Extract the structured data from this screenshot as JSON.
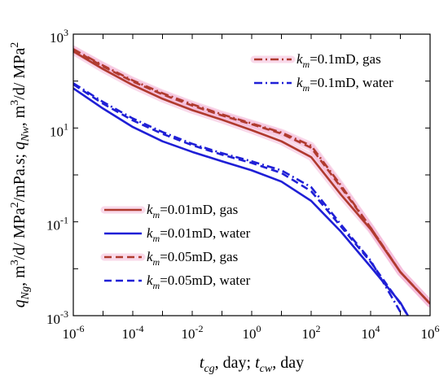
{
  "chart_data": {
    "type": "line",
    "x_scale": "log",
    "y_scale": "log",
    "xlim": [
      1e-06,
      1000000.0
    ],
    "ylim": [
      0.001,
      1000.0
    ],
    "x_ticks": [
      {
        "base": "10",
        "exp": "-6",
        "value": 1e-06
      },
      {
        "base": "10",
        "exp": "-4",
        "value": 0.0001
      },
      {
        "base": "10",
        "exp": "-2",
        "value": 0.01
      },
      {
        "base": "10",
        "exp": "0",
        "value": 1
      },
      {
        "base": "10",
        "exp": "2",
        "value": 100.0
      },
      {
        "base": "10",
        "exp": "4",
        "value": 10000.0
      },
      {
        "base": "10",
        "exp": "6",
        "value": 1000000.0
      }
    ],
    "y_ticks": [
      {
        "base": "10",
        "exp": "-3",
        "value": 0.001
      },
      {
        "base": "10",
        "exp": "-1",
        "value": 0.1
      },
      {
        "base": "10",
        "exp": "1",
        "value": 10
      },
      {
        "base": "10",
        "exp": "3",
        "value": 1000.0
      }
    ],
    "xlabel": {
      "p1": "t",
      "s1": "cg",
      "p2": ", day; ",
      "p3": "t",
      "s2": "cw",
      "p4": ", day"
    },
    "ylabel": {
      "p1": "q",
      "s1": "Ng",
      "p2": ", m",
      "e1": "3",
      "p3": "/d/ MPa",
      "e2": "2",
      "p4": "/mPa.s; ",
      "p5": "q",
      "s2": "Nw",
      "p6": ", m",
      "e3": "3",
      "p7": "/d/ MPa",
      "e4": "2"
    },
    "grid": false,
    "legend_placement": [
      "top-right",
      "lower-left"
    ],
    "colors": {
      "gas": "#b03a2e",
      "water": "#1f1fd6",
      "band": "#f3b3d6"
    },
    "series": [
      {
        "key": "k01_gas",
        "legend_prefix": "k",
        "legend_sub": "m",
        "legend_suffix": "=0.1mD, gas",
        "style": "dashdot",
        "color": "gas",
        "band": true,
        "x": [
          1e-06,
          1e-05,
          0.0001,
          0.001,
          0.01,
          0.1,
          1,
          10,
          100,
          1000,
          10000.0,
          100000.0,
          1000000.0
        ],
        "y": [
          480,
          215,
          103,
          55,
          32,
          19.5,
          12.5,
          8,
          4.2,
          0.6,
          0.075,
          0.0085,
          0.0018
        ]
      },
      {
        "key": "k01_water",
        "legend_prefix": "k",
        "legend_sub": "m",
        "legend_suffix": "=0.1mD, water",
        "style": "dashdot",
        "color": "water",
        "band": false,
        "x": [
          1e-06,
          1e-05,
          0.0001,
          0.001,
          0.01,
          0.1,
          1,
          10,
          100,
          1000,
          10000.0,
          100000.0
        ],
        "y": [
          90,
          36,
          16,
          8.2,
          4.6,
          2.9,
          1.95,
          1.25,
          0.55,
          0.088,
          0.015,
          0.0012
        ]
      },
      {
        "key": "k001_gas",
        "legend_prefix": "k",
        "legend_sub": "m",
        "legend_suffix": "=0.01mD, gas",
        "style": "solid",
        "color": "gas",
        "band": true,
        "x": [
          1e-06,
          1e-05,
          0.0001,
          0.001,
          0.01,
          0.1,
          1,
          10,
          100,
          1000,
          10000.0,
          100000.0,
          1000000.0
        ],
        "y": [
          430,
          180,
          82,
          42,
          24,
          15,
          9,
          5.2,
          2.4,
          0.38,
          0.07,
          0.0085,
          0.0018
        ]
      },
      {
        "key": "k001_water",
        "legend_prefix": "k",
        "legend_sub": "m",
        "legend_suffix": "=0.01mD, water",
        "style": "solid",
        "color": "water",
        "band": false,
        "x": [
          1e-06,
          1e-05,
          0.0001,
          0.001,
          0.01,
          0.1,
          1,
          10,
          100,
          1000,
          10000.0,
          100000.0,
          180000.0
        ],
        "y": [
          70,
          26,
          10.5,
          5.2,
          3.1,
          1.95,
          1.25,
          0.72,
          0.28,
          0.062,
          0.011,
          0.0019,
          0.001
        ]
      },
      {
        "key": "k005_gas",
        "legend_prefix": "k",
        "legend_sub": "m",
        "legend_suffix": "=0.05mD, gas",
        "style": "dashed",
        "color": "gas",
        "band": true,
        "x": [
          1e-06,
          1e-05,
          0.0001,
          0.001,
          0.01,
          0.1,
          1,
          10,
          100,
          1000,
          10000.0,
          100000.0,
          1000000.0
        ],
        "y": [
          470,
          205,
          98,
          52,
          30,
          18.5,
          12,
          7.6,
          3.8,
          0.55,
          0.075,
          0.0085,
          0.0018
        ]
      },
      {
        "key": "k005_water",
        "legend_prefix": "k",
        "legend_sub": "m",
        "legend_suffix": "=0.05mD, water",
        "style": "dashed",
        "color": "water",
        "band": false,
        "x": [
          1e-06,
          1e-05,
          0.0001,
          0.001,
          0.01,
          0.1,
          1,
          10,
          100,
          1000,
          10000.0,
          100000.0,
          180000.0
        ],
        "y": [
          85,
          33,
          14.5,
          7.5,
          4.3,
          2.7,
          1.8,
          1.1,
          0.45,
          0.08,
          0.014,
          0.0018,
          0.001
        ]
      }
    ],
    "legend_top": [
      "k01_gas",
      "k01_water"
    ],
    "legend_bottom": [
      "k001_gas",
      "k001_water",
      "k005_gas",
      "k005_water"
    ]
  }
}
